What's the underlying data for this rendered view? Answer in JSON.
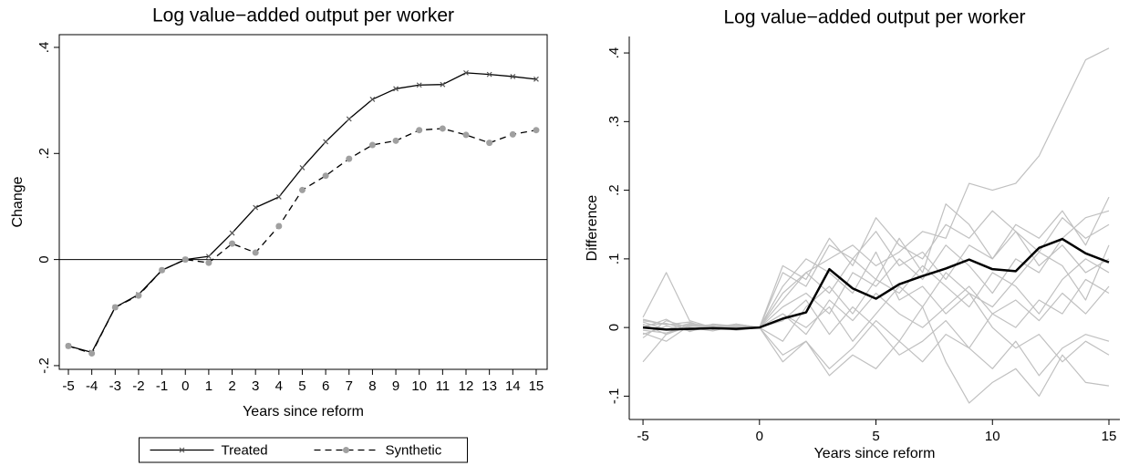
{
  "chart_data": [
    {
      "type": "line",
      "title": "Log value−added output per worker",
      "xlabel": "Years since reform",
      "ylabel": "Change",
      "x": [
        -5,
        -4,
        -3,
        -2,
        -1,
        0,
        1,
        2,
        3,
        4,
        5,
        6,
        7,
        8,
        9,
        10,
        11,
        12,
        13,
        14,
        15
      ],
      "xlim": [
        -5.39,
        15.47
      ],
      "ylim": [
        -0.207,
        0.424
      ],
      "xticks": [
        -5,
        -4,
        -3,
        -2,
        -1,
        0,
        1,
        2,
        3,
        4,
        5,
        6,
        7,
        8,
        9,
        10,
        11,
        12,
        13,
        14,
        15
      ],
      "yticks": [
        {
          "value": -0.2,
          "label": "-.2"
        },
        0,
        {
          "value": 0.2,
          "label": ".2"
        },
        {
          "value": 0.4,
          "label": ".4"
        }
      ],
      "reference_line": 0,
      "frame": "box",
      "legend": "bottom",
      "series": [
        {
          "name": "Treated",
          "color": "#000000",
          "linestyle": "solid",
          "marker": "x",
          "marker_color": "#555555",
          "values": [
            -0.163,
            -0.175,
            -0.09,
            -0.066,
            -0.02,
            0,
            0.006,
            0.05,
            0.098,
            0.118,
            0.173,
            0.222,
            0.265,
            0.302,
            0.322,
            0.329,
            0.33,
            0.352,
            0.349,
            0.345,
            0.34
          ]
        },
        {
          "name": "Synthetic",
          "color": "#000000",
          "linestyle": "dashed",
          "marker": "circle",
          "marker_color": "#a0a0a0",
          "values": [
            -0.163,
            -0.177,
            -0.09,
            -0.068,
            -0.02,
            0,
            -0.006,
            0.03,
            0.013,
            0.063,
            0.131,
            0.158,
            0.19,
            0.216,
            0.224,
            0.244,
            0.247,
            0.235,
            0.22,
            0.236,
            0.244
          ]
        }
      ]
    },
    {
      "type": "line",
      "title": "Log value−added output per worker",
      "xlabel": "Years since reform",
      "ylabel": "Difference",
      "x": [
        -5,
        -4,
        -3,
        -2,
        -1,
        0,
        1,
        2,
        3,
        4,
        5,
        6,
        7,
        8,
        9,
        10,
        11,
        12,
        13,
        14,
        15
      ],
      "xlim": [
        -5.59,
        15.47
      ],
      "ylim": [
        -0.134,
        0.424
      ],
      "xticks": [
        -5,
        0,
        5,
        10,
        15
      ],
      "yticks": [
        {
          "value": -0.1,
          "label": "-.1"
        },
        0,
        {
          "value": 0.1,
          "label": ".1"
        },
        {
          "value": 0.2,
          "label": ".2"
        },
        {
          "value": 0.3,
          "label": ".3"
        },
        {
          "value": 0.4,
          "label": ".4"
        }
      ],
      "frame": "axes",
      "series": [
        {
          "color": "#c0c0c0",
          "values": [
            0.01,
            0.005,
            0.002,
            0,
            0.003,
            0,
            0.05,
            0.08,
            0.1,
            0.12,
            0.09,
            0.11,
            0.14,
            0.13,
            0.21,
            0.2,
            0.21,
            0.25,
            0.32,
            0.39,
            0.407
          ]
        },
        {
          "color": "#c0c0c0",
          "values": [
            -0.05,
            -0.01,
            0.005,
            0.002,
            -0.003,
            0,
            0.08,
            0.06,
            0.12,
            0.1,
            0.14,
            0.09,
            0.11,
            0.07,
            0.12,
            0.1,
            0.15,
            0.13,
            0.17,
            0.12,
            0.19
          ]
        },
        {
          "color": "#c0c0c0",
          "values": [
            0.015,
            0.08,
            0.01,
            0,
            0.005,
            0,
            -0.04,
            -0.02,
            -0.06,
            -0.03,
            0.01,
            -0.02,
            0.03,
            -0.05,
            -0.11,
            -0.08,
            -0.06,
            -0.1,
            -0.04,
            -0.08,
            -0.085
          ]
        },
        {
          "color": "#c0c0c0",
          "values": [
            0.005,
            -0.01,
            0.002,
            0.004,
            0.001,
            0,
            0.03,
            0.05,
            0.02,
            0.08,
            0.06,
            0.1,
            0.07,
            0.12,
            0.09,
            0.05,
            0.1,
            0.08,
            0.13,
            0.16,
            0.17
          ]
        },
        {
          "color": "#c0c0c0",
          "values": [
            -0.01,
            0.002,
            -0.005,
            0.001,
            0,
            0,
            0.02,
            -0.01,
            0.04,
            0.01,
            0.05,
            0.02,
            0,
            0.03,
            0.06,
            0.02,
            0.04,
            0.01,
            0.05,
            0.02,
            0.06
          ]
        },
        {
          "color": "#c0c0c0",
          "values": [
            0.012,
            0.004,
            0.008,
            -0.003,
            0.002,
            0,
            -0.02,
            0.03,
            0.06,
            0.02,
            0.07,
            0.13,
            0.08,
            0.18,
            0.15,
            0.1,
            0.14,
            0.09,
            0.12,
            0.08,
            0.1
          ]
        },
        {
          "color": "#c0c0c0",
          "values": [
            -0.008,
            -0.02,
            0.003,
            0.002,
            -0.004,
            0,
            0.06,
            0.1,
            0.08,
            0.05,
            0.11,
            0.04,
            0.06,
            0.02,
            0.05,
            0,
            -0.03,
            -0.01,
            -0.05,
            -0.02,
            -0.04
          ]
        },
        {
          "color": "#c0c0c0",
          "values": [
            0.003,
            0.006,
            -0.004,
            0.005,
            0.002,
            0,
            0.01,
            0.04,
            -0.01,
            0.03,
            0,
            -0.04,
            -0.02,
            0.01,
            -0.03,
            0.02,
            0,
            0.04,
            0.02,
            0.07,
            0.05
          ]
        },
        {
          "color": "#c0c0c0",
          "values": [
            -0.015,
            0.01,
            0,
            -0.005,
            0.003,
            0,
            0.09,
            0.07,
            0.13,
            0.09,
            0.16,
            0.12,
            0.1,
            0.15,
            0.13,
            0.17,
            0.14,
            0.11,
            0.16,
            0.13,
            0.15
          ]
        },
        {
          "color": "#c0c0c0",
          "values": [
            0.008,
            -0.003,
            0.006,
            0.002,
            -0.002,
            0,
            -0.05,
            -0.02,
            -0.07,
            -0.04,
            -0.06,
            -0.02,
            -0.05,
            -0.01,
            -0.03,
            -0.06,
            -0.02,
            -0.07,
            -0.03,
            -0.01,
            -0.02
          ]
        },
        {
          "color": "#c0c0c0",
          "values": [
            0,
            0.012,
            -0.006,
            0.004,
            0.001,
            0,
            0.04,
            0.08,
            0.05,
            0.1,
            0.07,
            0.05,
            0.09,
            0.06,
            0.03,
            0.08,
            0.06,
            0.02,
            0.07,
            0.1,
            0.08
          ]
        },
        {
          "color": "#c0c0c0",
          "values": [
            -0.004,
            -0.008,
            0.004,
            -0.002,
            0.005,
            0,
            0.02,
            0,
            0.03,
            -0.02,
            0.02,
            0.06,
            0.03,
            0.08,
            0.05,
            0.03,
            0.07,
            0.11,
            0.09,
            0.04,
            0.12
          ]
        },
        {
          "color": "#000000",
          "values": [
            0,
            -0.003,
            -0.002,
            -0.001,
            -0.002,
            0,
            0.013,
            0.022,
            0.085,
            0.057,
            0.042,
            0.063,
            0.075,
            0.086,
            0.099,
            0.085,
            0.082,
            0.116,
            0.129,
            0.108,
            0.095
          ]
        }
      ]
    }
  ]
}
